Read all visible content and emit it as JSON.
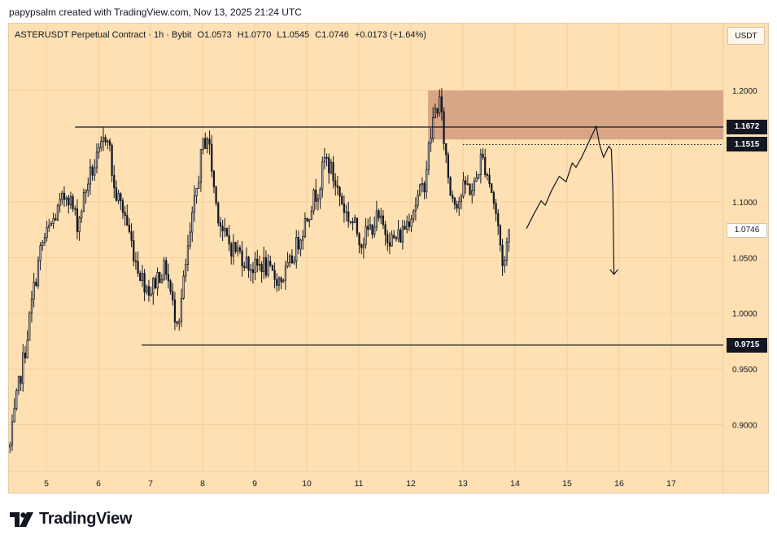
{
  "header": {
    "credit": "papypsalm created with TradingView.com, Nov 13, 2025 21:24 UTC"
  },
  "legend": {
    "symbol": "ASTERUSDT Perpetual Contract · 1h · Bybit",
    "open": "O1.0573",
    "high": "H1.0770",
    "low": "L1.0545",
    "close": "C1.0746",
    "change": "+0.0173 (+1.64%)"
  },
  "unit_label": "USDT",
  "brand": "TradingView",
  "colors": {
    "background": "#ffe0b2",
    "candle": "#131722",
    "zone": "#d4a081",
    "grid": "#f0cf9f"
  },
  "chart_data": {
    "type": "candlestick",
    "title": "ASTERUSDT Perpetual Contract · 1h · Bybit",
    "ylabel": "USDT",
    "ylim": [
      0.858,
      1.26
    ],
    "y_ticks": [
      "1.2000",
      "1.1000",
      "1.0500",
      "1.0000",
      "0.9500",
      "0.9000"
    ],
    "x_ticks": [
      {
        "day": 5,
        "label": "5"
      },
      {
        "day": 6,
        "label": "6"
      },
      {
        "day": 7,
        "label": "7"
      },
      {
        "day": 8,
        "label": "8"
      },
      {
        "day": 9,
        "label": "9"
      },
      {
        "day": 10,
        "label": "10"
      },
      {
        "day": 11,
        "label": "11"
      },
      {
        "day": 12,
        "label": "12"
      },
      {
        "day": 13,
        "label": "13"
      },
      {
        "day": 14,
        "label": "14"
      },
      {
        "day": 15,
        "label": "15"
      },
      {
        "day": 16,
        "label": "16"
      },
      {
        "day": 17,
        "label": "17"
      }
    ],
    "xlim_days": [
      4.28,
      18.0
    ],
    "price_path": [
      [
        4.3,
        0.88
      ],
      [
        4.45,
        0.93
      ],
      [
        4.6,
        0.97
      ],
      [
        4.75,
        1.02
      ],
      [
        4.9,
        1.06
      ],
      [
        5.1,
        1.08
      ],
      [
        5.4,
        1.11
      ],
      [
        5.6,
        1.08
      ],
      [
        5.8,
        1.12
      ],
      [
        6.0,
        1.14
      ],
      [
        6.17,
        1.165
      ],
      [
        6.3,
        1.11
      ],
      [
        6.5,
        1.09
      ],
      [
        6.7,
        1.05
      ],
      [
        6.85,
        1.03
      ],
      [
        7.0,
        1.02
      ],
      [
        7.15,
        1.035
      ],
      [
        7.3,
        1.04
      ],
      [
        7.45,
        1.0
      ],
      [
        7.55,
        0.998
      ],
      [
        7.7,
        1.05
      ],
      [
        7.85,
        1.1
      ],
      [
        8.0,
        1.15
      ],
      [
        8.1,
        1.16
      ],
      [
        8.25,
        1.1
      ],
      [
        8.4,
        1.07
      ],
      [
        8.55,
        1.06
      ],
      [
        8.7,
        1.055
      ],
      [
        8.85,
        1.045
      ],
      [
        9.0,
        1.04
      ],
      [
        9.15,
        1.045
      ],
      [
        9.3,
        1.035
      ],
      [
        9.5,
        1.03
      ],
      [
        9.65,
        1.04
      ],
      [
        9.8,
        1.06
      ],
      [
        9.95,
        1.08
      ],
      [
        10.1,
        1.1
      ],
      [
        10.25,
        1.115
      ],
      [
        10.35,
        1.14
      ],
      [
        10.45,
        1.13
      ],
      [
        10.6,
        1.11
      ],
      [
        10.75,
        1.09
      ],
      [
        10.9,
        1.08
      ],
      [
        11.05,
        1.065
      ],
      [
        11.2,
        1.075
      ],
      [
        11.35,
        1.085
      ],
      [
        11.5,
        1.075
      ],
      [
        11.65,
        1.065
      ],
      [
        11.8,
        1.07
      ],
      [
        11.95,
        1.085
      ],
      [
        12.1,
        1.1
      ],
      [
        12.25,
        1.115
      ],
      [
        12.35,
        1.15
      ],
      [
        12.45,
        1.18
      ],
      [
        12.55,
        1.19
      ],
      [
        12.65,
        1.15
      ],
      [
        12.75,
        1.11
      ],
      [
        12.9,
        1.1
      ],
      [
        13.05,
        1.115
      ],
      [
        13.2,
        1.11
      ],
      [
        13.35,
        1.14
      ],
      [
        13.45,
        1.13
      ],
      [
        13.55,
        1.11
      ],
      [
        13.65,
        1.085
      ],
      [
        13.72,
        1.06
      ],
      [
        13.78,
        1.04
      ],
      [
        13.85,
        1.065
      ],
      [
        13.9,
        1.075
      ]
    ],
    "price_lines": [
      {
        "name": "resistance",
        "value": 1.1672,
        "label": "1.1672",
        "from_day": 5.55,
        "style": "solid"
      },
      {
        "name": "current-level",
        "value": 1.1515,
        "label": "1.1515",
        "from_day": 13.0,
        "style": "dotted"
      },
      {
        "name": "support",
        "value": 0.9715,
        "label": "0.9715",
        "from_day": 6.83,
        "style": "solid"
      }
    ],
    "last_price": {
      "value": 1.0746,
      "label": "1.0746"
    },
    "supply_zone": {
      "top": 1.2,
      "bottom": 1.156,
      "from_day": 12.33
    },
    "projection_path": [
      [
        14.22,
        1.076
      ],
      [
        14.35,
        1.088
      ],
      [
        14.5,
        1.101
      ],
      [
        14.58,
        1.097
      ],
      [
        14.7,
        1.11
      ],
      [
        14.85,
        1.123
      ],
      [
        14.98,
        1.118
      ],
      [
        15.1,
        1.135
      ],
      [
        15.17,
        1.131
      ],
      [
        15.28,
        1.14
      ],
      [
        15.38,
        1.15
      ],
      [
        15.48,
        1.16
      ],
      [
        15.56,
        1.168
      ],
      [
        15.62,
        1.152
      ],
      [
        15.7,
        1.14
      ],
      [
        15.8,
        1.15
      ],
      [
        15.85,
        1.147
      ],
      [
        15.88,
        1.11
      ],
      [
        15.9,
        1.035
      ]
    ]
  }
}
